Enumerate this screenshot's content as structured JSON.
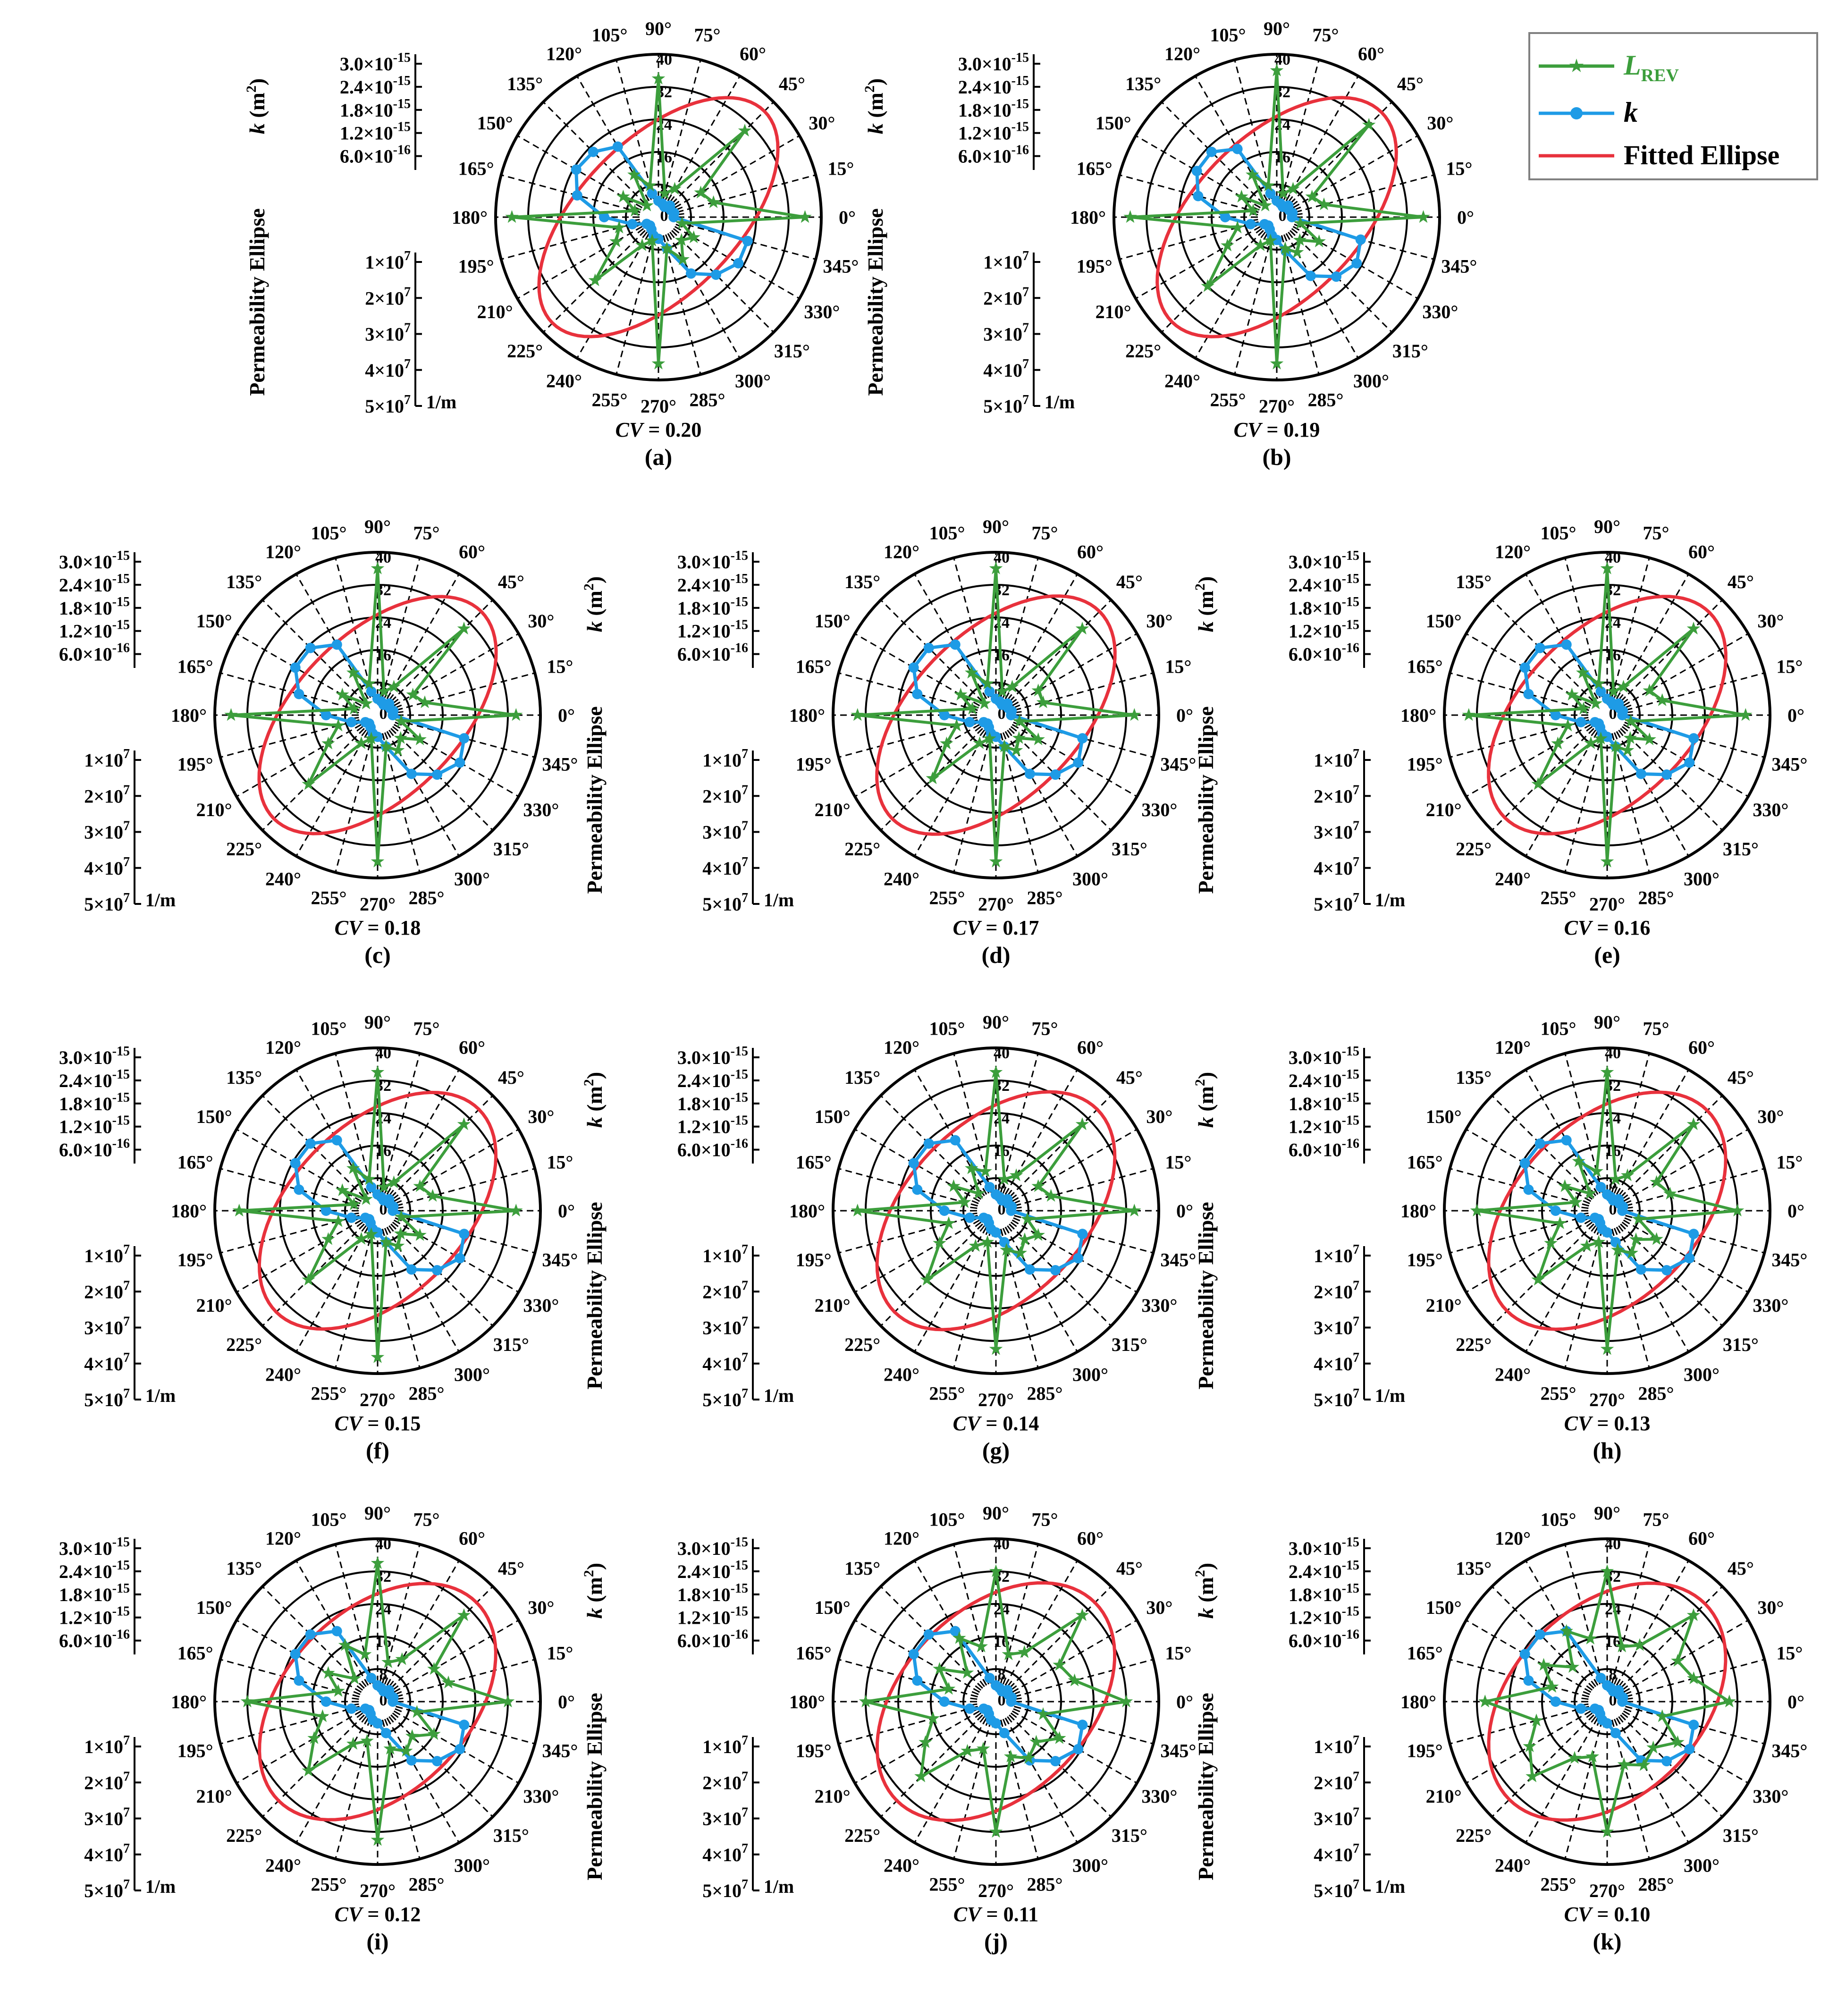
{
  "figure": {
    "angle_labels": [
      "0°",
      "15°",
      "30°",
      "45°",
      "60°",
      "75°",
      "90°",
      "105°",
      "120°",
      "135°",
      "150°",
      "165°",
      "180°",
      "195°",
      "210°",
      "225°",
      "240°",
      "255°",
      "270°",
      "285°",
      "300°",
      "315°",
      "330°",
      "345°"
    ],
    "radial_labels": [
      "0",
      "8",
      "16",
      "24",
      "32",
      "40"
    ],
    "k_axis": {
      "label_pre": "k",
      "label_post": " (m",
      "label_sup": "2",
      "label_close": ")",
      "ticks": [
        "3.0×10",
        "2.4×10",
        "1.8×10",
        "1.2×10",
        "6.0×10"
      ],
      "tick_exps": [
        "-15",
        "-15",
        "-15",
        "-15",
        "-16"
      ]
    },
    "pe_axis": {
      "label": "Permeability Ellipse",
      "unit": "1/m",
      "ticks": [
        "1×10",
        "2×10",
        "3×10",
        "4×10",
        "5×10"
      ],
      "tick_exps": [
        "7",
        "7",
        "7",
        "7",
        "7"
      ]
    },
    "legend": {
      "l_rev_main": "L",
      "l_rev_sub": "REV",
      "k": "k",
      "ellipse": "Fitted Ellipse"
    },
    "colors": {
      "l_rev": "#3c9e3c",
      "k": "#1e9be6",
      "ellipse": "#e8313c",
      "grid": "#000000"
    }
  },
  "panels": [
    {
      "letter": "(a)",
      "cv_label": "CV",
      "cv_value": " = 0.20"
    },
    {
      "letter": "(b)",
      "cv_label": "CV",
      "cv_value": " = 0.19"
    },
    {
      "letter": "(c)",
      "cv_label": "CV",
      "cv_value": " = 0.18"
    },
    {
      "letter": "(d)",
      "cv_label": "CV",
      "cv_value": " = 0.17"
    },
    {
      "letter": "(e)",
      "cv_label": "CV",
      "cv_value": " = 0.16"
    },
    {
      "letter": "(f)",
      "cv_label": "CV",
      "cv_value": " = 0.15"
    },
    {
      "letter": "(g)",
      "cv_label": "CV",
      "cv_value": " = 0.14"
    },
    {
      "letter": "(h)",
      "cv_label": "CV",
      "cv_value": " = 0.13"
    },
    {
      "letter": "(i)",
      "cv_label": "CV",
      "cv_value": " = 0.12"
    },
    {
      "letter": "(j)",
      "cv_label": "CV",
      "cv_value": " = 0.11"
    },
    {
      "letter": "(k)",
      "cv_label": "CV",
      "cv_value": " = 0.10"
    }
  ],
  "chart_data": {
    "type": "polar",
    "theta_unit": "deg",
    "theta": [
      0,
      15,
      30,
      45,
      60,
      75,
      90,
      105,
      120,
      135,
      150,
      165,
      180,
      195,
      210,
      225,
      240,
      255,
      270,
      285,
      300,
      315,
      330,
      345
    ],
    "r_range": [
      0,
      40
    ],
    "r_ticks": [
      0,
      8,
      16,
      24,
      32,
      40
    ],
    "k_range": [
      0,
      3e-15
    ],
    "k_ticks": [
      3e-15,
      2.4e-15,
      1.8e-15,
      1.2e-15,
      6e-16
    ],
    "pe_range": [
      0,
      50000000.0
    ],
    "pe_ticks": [
      10000000.0,
      20000000.0,
      30000000.0,
      40000000.0,
      50000000.0
    ],
    "panels": [
      {
        "cv": 0.2,
        "l_rev": [
          36,
          14,
          12,
          30,
          8,
          6,
          34,
          8,
          12,
          4,
          10,
          6,
          36,
          10,
          12,
          22,
          8,
          6,
          36,
          8,
          12,
          8,
          10,
          6
        ],
        "k": [
          2.8e-16,
          3e-16,
          2.6e-16,
          3e-16,
          2.2e-16,
          2.6e-16,
          3e-16,
          4.5e-16,
          1.5e-15,
          1.7e-15,
          1.75e-15,
          1.55e-15,
          1e-15,
          5e-16,
          2.5e-16,
          2.2e-16,
          2.6e-16,
          3.5e-16,
          4e-16,
          6e-16,
          1.2e-15,
          1.5e-15,
          1.7e-15,
          1.7e-15
        ],
        "ellipse": {
          "a": 46000000.0,
          "b": 24000000.0,
          "angle_deg": 45
        }
      },
      {
        "cv": 0.19,
        "l_rev": [
          36,
          12,
          10,
          32,
          8,
          6,
          36,
          8,
          12,
          4,
          10,
          6,
          36,
          10,
          14,
          24,
          8,
          6,
          36,
          8,
          10,
          8,
          12,
          6
        ],
        "k": [
          2.8e-16,
          3e-16,
          2.6e-16,
          3e-16,
          2.2e-16,
          2.6e-16,
          3e-16,
          4.5e-16,
          1.45e-15,
          1.7e-15,
          1.7e-15,
          1.5e-15,
          9.5e-16,
          5e-16,
          2.6e-16,
          2.2e-16,
          2.6e-16,
          3.5e-16,
          4.2e-16,
          6.5e-16,
          1.25e-15,
          1.55e-15,
          1.7e-15,
          1.6e-15
        ],
        "ellipse": {
          "a": 45500000.0,
          "b": 25000000.0,
          "angle_deg": 45
        }
      },
      {
        "cv": 0.18,
        "l_rev": [
          34,
          12,
          10,
          30,
          8,
          6,
          36,
          8,
          12,
          4,
          10,
          6,
          36,
          10,
          14,
          24,
          8,
          6,
          36,
          8,
          10,
          8,
          12,
          6
        ],
        "k": [
          2.8e-16,
          3e-16,
          2.6e-16,
          3e-16,
          2.2e-16,
          2.6e-16,
          3e-16,
          4.5e-16,
          1.5e-15,
          1.75e-15,
          1.75e-15,
          1.5e-15,
          9.5e-16,
          5e-16,
          2.6e-16,
          2.2e-16,
          2.6e-16,
          3.5e-16,
          4e-16,
          6e-16,
          1.25e-15,
          1.55e-15,
          1.75e-15,
          1.65e-15
        ],
        "ellipse": {
          "a": 45000000.0,
          "b": 25000000.0,
          "angle_deg": 45
        }
      },
      {
        "cv": 0.17,
        "l_rev": [
          34,
          12,
          12,
          30,
          8,
          6,
          36,
          8,
          12,
          4,
          10,
          6,
          34,
          10,
          14,
          22,
          8,
          6,
          36,
          8,
          10,
          8,
          12,
          6
        ],
        "k": [
          2.8e-16,
          3e-16,
          2.6e-16,
          3e-16,
          2.2e-16,
          2.6e-16,
          3e-16,
          4.5e-16,
          1.5e-15,
          1.75e-15,
          1.75e-15,
          1.5e-15,
          9.5e-16,
          5e-16,
          2.6e-16,
          2.2e-16,
          2.6e-16,
          3.5e-16,
          4e-16,
          6e-16,
          1.25e-15,
          1.55e-15,
          1.75e-15,
          1.65e-15
        ],
        "ellipse": {
          "a": 45000000.0,
          "b": 25500000.0,
          "angle_deg": 45
        }
      },
      {
        "cv": 0.16,
        "l_rev": [
          34,
          14,
          12,
          30,
          8,
          6,
          36,
          8,
          12,
          4,
          10,
          6,
          34,
          10,
          14,
          24,
          8,
          6,
          36,
          8,
          10,
          8,
          12,
          6
        ],
        "k": [
          2.8e-16,
          3e-16,
          2.6e-16,
          3e-16,
          2.2e-16,
          2.6e-16,
          3e-16,
          4.5e-16,
          1.5e-15,
          1.75e-15,
          1.75e-15,
          1.5e-15,
          9.5e-16,
          5e-16,
          2.6e-16,
          2.2e-16,
          2.6e-16,
          3.5e-16,
          4e-16,
          6e-16,
          1.25e-15,
          1.55e-15,
          1.75e-15,
          1.65e-15
        ],
        "ellipse": {
          "a": 44500000.0,
          "b": 26000000.0,
          "angle_deg": 45
        }
      },
      {
        "cv": 0.15,
        "l_rev": [
          34,
          14,
          12,
          30,
          8,
          6,
          34,
          8,
          12,
          4,
          10,
          6,
          34,
          10,
          14,
          24,
          8,
          6,
          36,
          8,
          10,
          8,
          12,
          6
        ],
        "k": [
          2.8e-16,
          3e-16,
          2.6e-16,
          3e-16,
          2.2e-16,
          2.6e-16,
          3e-16,
          4.5e-16,
          1.5e-15,
          1.75e-15,
          1.75e-15,
          1.5e-15,
          9.5e-16,
          5e-16,
          2.6e-16,
          2.2e-16,
          2.6e-16,
          3.5e-16,
          4e-16,
          6e-16,
          1.25e-15,
          1.55e-15,
          1.75e-15,
          1.65e-15
        ],
        "ellipse": {
          "a": 44000000.0,
          "b": 26500000.0,
          "angle_deg": 45
        }
      },
      {
        "cv": 0.14,
        "l_rev": [
          34,
          14,
          12,
          30,
          10,
          8,
          34,
          10,
          12,
          6,
          12,
          8,
          34,
          12,
          16,
          24,
          10,
          8,
          34,
          10,
          12,
          10,
          12,
          8
        ],
        "k": [
          2.8e-16,
          3e-16,
          2.6e-16,
          3e-16,
          2.2e-16,
          2.6e-16,
          3e-16,
          4.5e-16,
          1.5e-15,
          1.75e-15,
          1.75e-15,
          1.5e-15,
          9.5e-16,
          5e-16,
          2.6e-16,
          2.2e-16,
          2.6e-16,
          3.5e-16,
          4e-16,
          6e-16,
          1.25e-15,
          1.55e-15,
          1.75e-15,
          1.65e-15
        ],
        "ellipse": {
          "a": 44000000.0,
          "b": 27000000.0,
          "angle_deg": 45
        }
      },
      {
        "cv": 0.13,
        "l_rev": [
          32,
          16,
          14,
          30,
          10,
          8,
          34,
          10,
          14,
          6,
          12,
          8,
          32,
          12,
          16,
          24,
          10,
          8,
          34,
          10,
          12,
          10,
          14,
          8
        ],
        "k": [
          2.8e-16,
          3e-16,
          2.6e-16,
          3e-16,
          2.2e-16,
          2.6e-16,
          3e-16,
          4.5e-16,
          1.5e-15,
          1.75e-15,
          1.75e-15,
          1.5e-15,
          9.5e-16,
          5e-16,
          2.6e-16,
          2.2e-16,
          2.6e-16,
          3.5e-16,
          4e-16,
          6e-16,
          1.25e-15,
          1.55e-15,
          1.75e-15,
          1.65e-15
        ],
        "ellipse": {
          "a": 43500000.0,
          "b": 27500000.0,
          "angle_deg": 45
        }
      },
      {
        "cv": 0.12,
        "l_rev": [
          32,
          18,
          16,
          30,
          12,
          10,
          34,
          12,
          16,
          8,
          14,
          10,
          32,
          14,
          18,
          24,
          12,
          10,
          34,
          12,
          14,
          12,
          16,
          10
        ],
        "k": [
          2.8e-16,
          3e-16,
          2.6e-16,
          3e-16,
          2.2e-16,
          2.6e-16,
          3e-16,
          4.5e-16,
          1.5e-15,
          1.75e-15,
          1.75e-15,
          1.5e-15,
          9.5e-16,
          5e-16,
          2.6e-16,
          2.2e-16,
          2.6e-16,
          3.5e-16,
          4e-16,
          6e-16,
          1.25e-15,
          1.55e-15,
          1.75e-15,
          1.65e-15
        ],
        "ellipse": {
          "a": 43000000.0,
          "b": 28000000.0,
          "angle_deg": 45
        }
      },
      {
        "cv": 0.11,
        "l_rev": [
          32,
          20,
          18,
          30,
          14,
          12,
          32,
          14,
          18,
          10,
          16,
          12,
          32,
          16,
          20,
          26,
          14,
          12,
          32,
          14,
          16,
          14,
          18,
          12
        ],
        "k": [
          2.8e-16,
          3e-16,
          2.6e-16,
          3e-16,
          2.2e-16,
          2.6e-16,
          3e-16,
          4.5e-16,
          1.5e-15,
          1.75e-15,
          1.75e-15,
          1.5e-15,
          9.5e-16,
          5e-16,
          2.6e-16,
          2.2e-16,
          2.6e-16,
          3.5e-16,
          4e-16,
          6e-16,
          1.25e-15,
          1.55e-15,
          1.75e-15,
          1.65e-15
        ],
        "ellipse": {
          "a": 43000000.0,
          "b": 28500000.0,
          "angle_deg": 45
        }
      },
      {
        "cv": 0.1,
        "l_rev": [
          30,
          22,
          20,
          30,
          16,
          14,
          32,
          16,
          20,
          12,
          18,
          14,
          30,
          18,
          22,
          26,
          16,
          14,
          32,
          16,
          18,
          16,
          20,
          14
        ],
        "k": [
          2.8e-16,
          3e-16,
          2.6e-16,
          3e-16,
          2.2e-16,
          2.6e-16,
          3e-16,
          4.5e-16,
          1.5e-15,
          1.75e-15,
          1.75e-15,
          1.5e-15,
          9.5e-16,
          5e-16,
          2.6e-16,
          2.2e-16,
          2.6e-16,
          3.5e-16,
          4e-16,
          6e-16,
          1.25e-15,
          1.55e-15,
          1.75e-15,
          1.65e-15
        ],
        "ellipse": {
          "a": 42500000.0,
          "b": 29000000.0,
          "angle_deg": 45
        }
      }
    ]
  }
}
